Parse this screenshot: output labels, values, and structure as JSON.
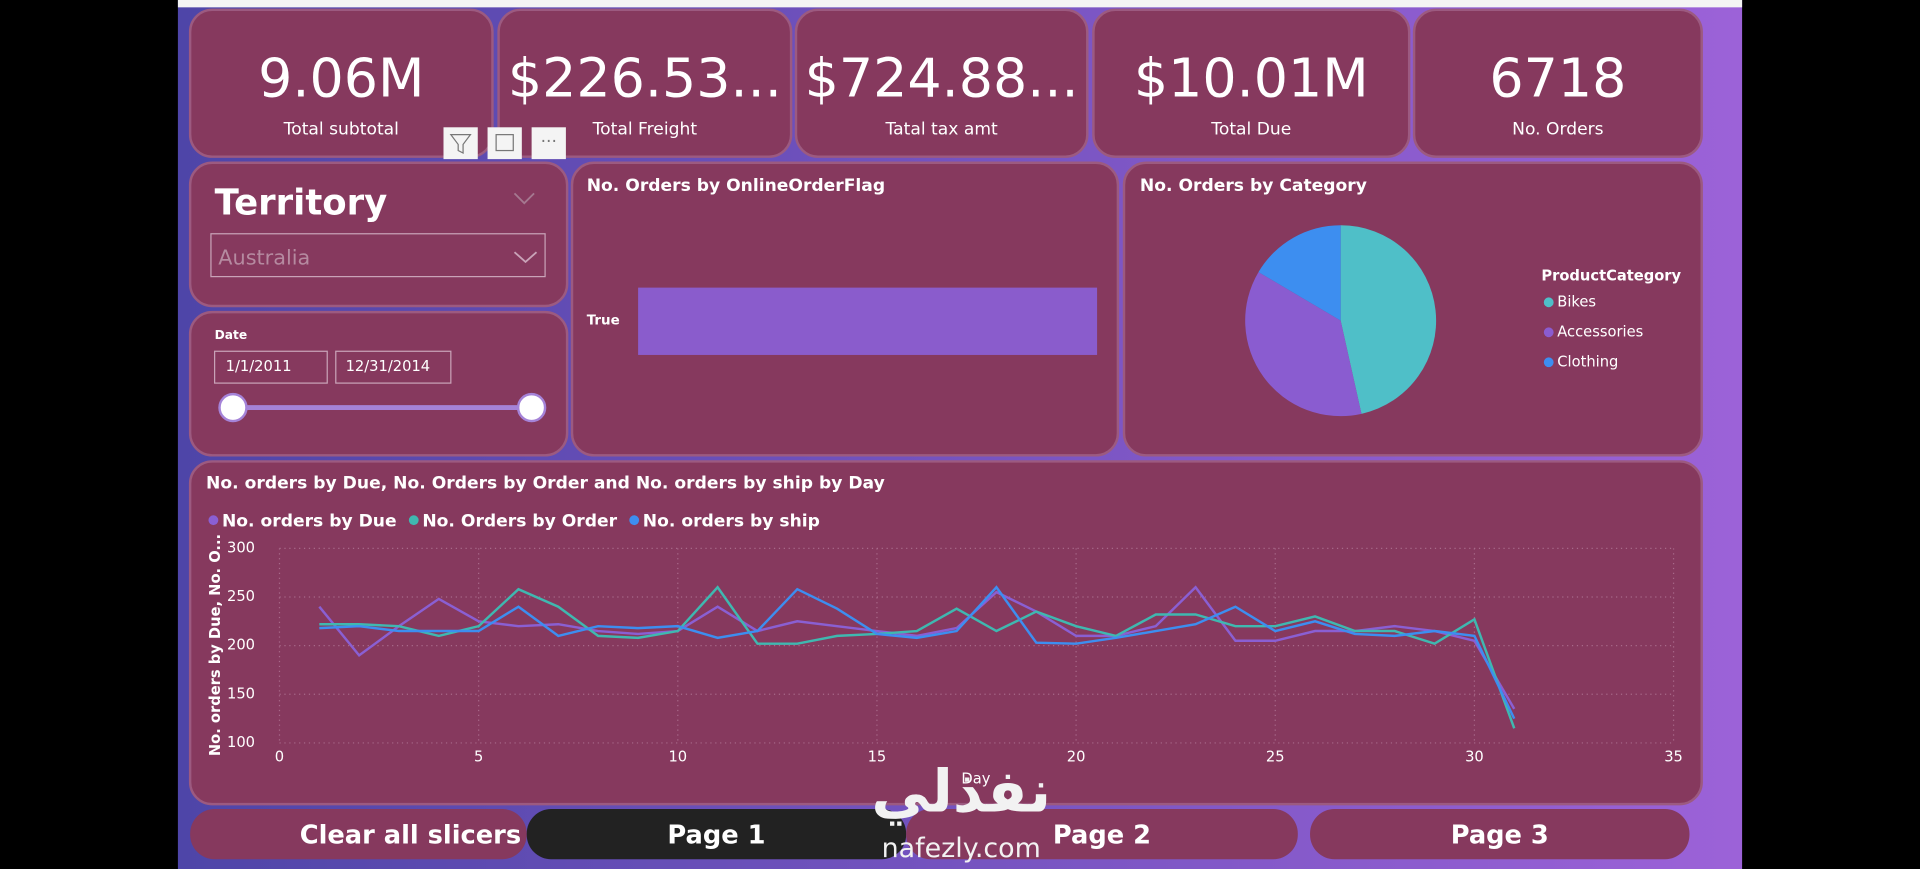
{
  "kpis": [
    {
      "value": "9.06M",
      "label": "Total subtotal"
    },
    {
      "value": "$226.53...",
      "label": "Total Freight"
    },
    {
      "value": "$724.88...",
      "label": "Tatal tax amt"
    },
    {
      "value": "$10.01M",
      "label": "Total Due"
    },
    {
      "value": "6718",
      "label": "No. Orders"
    }
  ],
  "territory_slicer": {
    "title": "Territory",
    "selected": "Australia"
  },
  "date_slicer": {
    "title": "Date",
    "start": "1/1/2011",
    "end": "12/31/2014"
  },
  "bar_chart": {
    "type": "bar",
    "title": "No. Orders by OnlineOrderFlag",
    "categories": [
      "True"
    ],
    "values": [
      6718
    ],
    "color": "#8a5ccc"
  },
  "pie_chart": {
    "type": "pie",
    "title": "No. Orders by Category",
    "legend_title": "ProductCategory",
    "categories": [
      "Bikes",
      "Accessories",
      "Clothing"
    ],
    "values": [
      46.5,
      37,
      16.5
    ],
    "colors": [
      "#4fbfc8",
      "#8a5cd0",
      "#3d8ef0"
    ]
  },
  "line_chart": {
    "type": "line",
    "title": "No. orders by Due, No. Orders by Order and No. orders by ship by Day",
    "x_label": "Day",
    "y_label": "No. orders by Due, No. O...",
    "x": [
      1,
      2,
      3,
      4,
      5,
      6,
      7,
      8,
      9,
      10,
      11,
      12,
      13,
      14,
      15,
      16,
      17,
      18,
      19,
      20,
      21,
      22,
      23,
      24,
      25,
      26,
      27,
      28,
      29,
      30,
      31
    ],
    "series": [
      {
        "name": "No. orders by Due",
        "color": "#8a5fd3",
        "values": [
          240,
          190,
          220,
          248,
          225,
          220,
          222,
          215,
          212,
          215,
          240,
          215,
          225,
          220,
          215,
          210,
          218,
          255,
          235,
          210,
          210,
          220,
          260,
          205,
          205,
          215,
          215,
          220,
          215,
          205,
          135
        ]
      },
      {
        "name": "No. Orders by Order",
        "color": "#3fb8b0",
        "values": [
          222,
          222,
          220,
          210,
          220,
          258,
          240,
          210,
          208,
          215,
          260,
          202,
          202,
          210,
          212,
          215,
          238,
          215,
          235,
          220,
          210,
          232,
          232,
          220,
          220,
          230,
          215,
          215,
          202,
          227,
          115
        ]
      },
      {
        "name": "No. orders by ship",
        "color": "#3d8ef0",
        "values": [
          218,
          220,
          215,
          215,
          215,
          240,
          210,
          220,
          218,
          220,
          208,
          215,
          258,
          238,
          212,
          208,
          215,
          260,
          203,
          202,
          208,
          215,
          222,
          240,
          215,
          225,
          212,
          210,
          215,
          210,
          125
        ]
      }
    ],
    "xlim": [
      0,
      35
    ],
    "xticks": [
      0,
      5,
      10,
      15,
      20,
      25,
      30,
      35
    ],
    "ylim": [
      100,
      300
    ],
    "yticks": [
      100,
      150,
      200,
      250,
      300
    ],
    "grid": true
  },
  "buttons": [
    "Clear all slicers",
    "Page 1",
    "Page 2",
    "Page 3"
  ],
  "watermark": {
    "logo": "نفذلي",
    "site": "nafezly.com"
  }
}
